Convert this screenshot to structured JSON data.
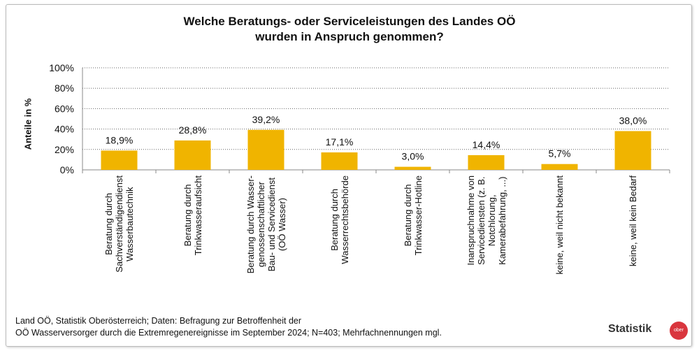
{
  "chart_data": {
    "type": "bar",
    "title": "Welche Beratungs- oder Serviceleistungen des Landes OÖ",
    "title_line2": "wurden in Anspruch genommen?",
    "ylabel": "Anteile in %",
    "ylim": [
      0,
      100
    ],
    "yticks": [
      "0%",
      "20%",
      "40%",
      "60%",
      "80%",
      "100%"
    ],
    "grid": true,
    "bar_color": "#f0b400",
    "categories": [
      [
        "Beratung durch",
        "Sachverständigendienst",
        "Wasserbautechnik"
      ],
      [
        "Beratung durch",
        "Trinkwasseraufsicht"
      ],
      [
        "Beratung durch Wasser-",
        "genossenschaftlicher",
        "Bau- und Servicedienst",
        "(OÖ Wasser)"
      ],
      [
        "Beratung durch",
        "Wasserrechtsbehörde"
      ],
      [
        "Beratung durch",
        "Trinkwasser-Hotline"
      ],
      [
        "Inanspruchnahme von",
        "Servicediensten (z. B.",
        "Notchlorung,",
        "Kamerabefahrung, ...)"
      ],
      [
        "keine, weil nicht bekannt"
      ],
      [
        "keine, weil kein Bedarf"
      ]
    ],
    "values": [
      18.9,
      28.8,
      39.2,
      17.1,
      3.0,
      14.4,
      5.7,
      38.0
    ],
    "data_labels": [
      "18,9%",
      "28,8%",
      "39,2%",
      "17,1%",
      "3,0%",
      "14,4%",
      "5,7%",
      "38,0%"
    ]
  },
  "footer": {
    "line1": "Land OÖ, Statistik Oberösterreich; Daten: Befragung zur Betroffenheit der",
    "line2": "OÖ Wasserversorger durch die Extremregenereignisse im September 2024; N=403; Mehrfachnennungen mgl."
  },
  "logo": {
    "text": "Statistik",
    "badge": "ober"
  }
}
